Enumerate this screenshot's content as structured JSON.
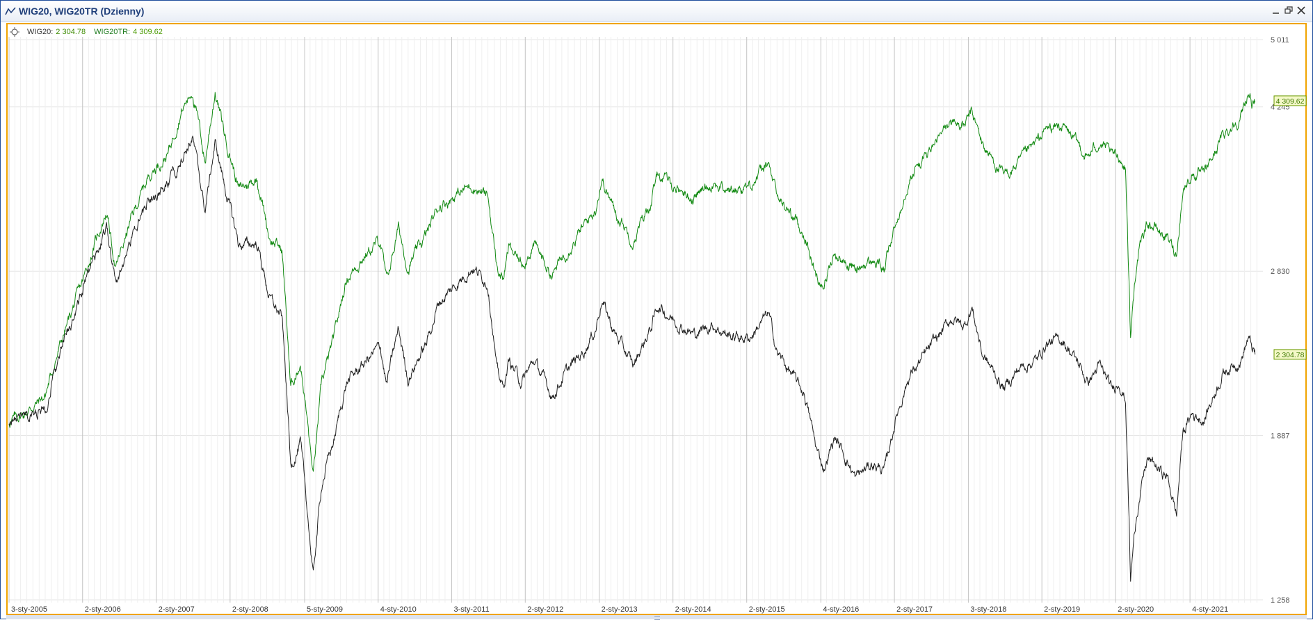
{
  "window": {
    "title": "WIG20, WIG20TR (Dzienny)",
    "icon": "chart-line-icon",
    "controls": [
      "minimize-icon",
      "restore-icon",
      "close-icon"
    ]
  },
  "legend": {
    "items": [
      {
        "name": "WIG20:",
        "value": "2 304.78",
        "color": "#222222"
      },
      {
        "name": "WIG20TR:",
        "value": "4 309.62",
        "color": "#138a13"
      }
    ]
  },
  "chart_data": {
    "type": "line",
    "title": "",
    "xlabel": "",
    "ylabel": "",
    "x_range": [
      "2005-01-03",
      "2021-12-31"
    ],
    "ylim": [
      1258,
      5011
    ],
    "y_scale": "log",
    "y_ticks": [
      {
        "label": "5 011",
        "value": 5011
      },
      {
        "label": "4 245",
        "value": 4245
      },
      {
        "label": "2 830",
        "value": 2830
      },
      {
        "label": "1 887",
        "value": 1887
      },
      {
        "label": "1 258",
        "value": 1258
      }
    ],
    "x_ticks": [
      {
        "label": "3-sty-2005",
        "date": "2005-01-03"
      },
      {
        "label": "2-sty-2006",
        "date": "2006-01-02"
      },
      {
        "label": "2-sty-2007",
        "date": "2007-01-02"
      },
      {
        "label": "2-sty-2008",
        "date": "2008-01-02"
      },
      {
        "label": "5-sty-2009",
        "date": "2009-01-05"
      },
      {
        "label": "4-sty-2010",
        "date": "2010-01-04"
      },
      {
        "label": "3-sty-2011",
        "date": "2011-01-03"
      },
      {
        "label": "2-sty-2012",
        "date": "2012-01-02"
      },
      {
        "label": "2-sty-2013",
        "date": "2013-01-02"
      },
      {
        "label": "2-sty-2014",
        "date": "2014-01-02"
      },
      {
        "label": "2-sty-2015",
        "date": "2015-01-02"
      },
      {
        "label": "4-sty-2016",
        "date": "2016-01-04"
      },
      {
        "label": "2-sty-2017",
        "date": "2017-01-02"
      },
      {
        "label": "3-sty-2018",
        "date": "2018-01-03"
      },
      {
        "label": "2-sty-2019",
        "date": "2019-01-02"
      },
      {
        "label": "2-sty-2020",
        "date": "2020-01-02"
      },
      {
        "label": "4-sty-2021",
        "date": "2021-01-04"
      }
    ],
    "grid": true,
    "series": [
      {
        "name": "WIG20TR",
        "color": "#138a13",
        "last_value": 4309.62,
        "last_label": "4 309.62",
        "points": [
          [
            "2005-01-03",
            1950
          ],
          [
            "2005-04-01",
            2000
          ],
          [
            "2005-07-01",
            2080
          ],
          [
            "2005-10-01",
            2420
          ],
          [
            "2006-01-02",
            2750
          ],
          [
            "2006-05-01",
            3280
          ],
          [
            "2006-06-15",
            2840
          ],
          [
            "2006-09-01",
            3220
          ],
          [
            "2006-12-01",
            3600
          ],
          [
            "2007-03-01",
            3780
          ],
          [
            "2007-05-01",
            4180
          ],
          [
            "2007-07-01",
            4420
          ],
          [
            "2007-09-01",
            3700
          ],
          [
            "2007-10-20",
            4400
          ],
          [
            "2007-12-15",
            3900
          ],
          [
            "2008-02-15",
            3460
          ],
          [
            "2008-05-15",
            3560
          ],
          [
            "2008-07-15",
            3080
          ],
          [
            "2008-09-15",
            2980
          ],
          [
            "2008-10-28",
            2120
          ],
          [
            "2008-12-15",
            2260
          ],
          [
            "2009-02-17",
            1700
          ],
          [
            "2009-04-01",
            2150
          ],
          [
            "2009-06-01",
            2400
          ],
          [
            "2009-08-01",
            2780
          ],
          [
            "2009-11-01",
            2950
          ],
          [
            "2010-01-15",
            3050
          ],
          [
            "2010-02-15",
            2750
          ],
          [
            "2010-04-15",
            3150
          ],
          [
            "2010-06-01",
            2850
          ],
          [
            "2010-09-01",
            3100
          ],
          [
            "2010-11-01",
            3330
          ],
          [
            "2011-01-01",
            3390
          ],
          [
            "2011-04-15",
            3500
          ],
          [
            "2011-07-01",
            3400
          ],
          [
            "2011-08-15",
            2850
          ],
          [
            "2011-09-15",
            2780
          ],
          [
            "2011-10-15",
            3000
          ],
          [
            "2011-12-15",
            2880
          ],
          [
            "2012-02-15",
            3020
          ],
          [
            "2012-05-15",
            2800
          ],
          [
            "2012-08-01",
            3000
          ],
          [
            "2012-10-15",
            3150
          ],
          [
            "2012-12-15",
            3300
          ],
          [
            "2013-01-15",
            3560
          ],
          [
            "2013-03-15",
            3300
          ],
          [
            "2013-06-20",
            3050
          ],
          [
            "2013-09-15",
            3350
          ],
          [
            "2013-10-20",
            3600
          ],
          [
            "2014-01-15",
            3480
          ],
          [
            "2014-04-15",
            3400
          ],
          [
            "2014-07-15",
            3520
          ],
          [
            "2014-10-15",
            3450
          ],
          [
            "2015-01-15",
            3500
          ],
          [
            "2015-04-20",
            3680
          ],
          [
            "2015-06-01",
            3400
          ],
          [
            "2015-08-15",
            3250
          ],
          [
            "2015-10-15",
            3100
          ],
          [
            "2015-12-15",
            2780
          ],
          [
            "2016-01-20",
            2750
          ],
          [
            "2016-03-15",
            2950
          ],
          [
            "2016-06-24",
            2840
          ],
          [
            "2016-09-15",
            2900
          ],
          [
            "2016-11-15",
            2850
          ],
          [
            "2017-01-15",
            3200
          ],
          [
            "2017-03-15",
            3560
          ],
          [
            "2017-06-15",
            3780
          ],
          [
            "2017-10-15",
            4100
          ],
          [
            "2017-12-15",
            4050
          ],
          [
            "2018-01-20",
            4180
          ],
          [
            "2018-03-15",
            3870
          ],
          [
            "2018-06-28",
            3570
          ],
          [
            "2018-09-15",
            3700
          ],
          [
            "2018-12-15",
            3900
          ],
          [
            "2019-01-25",
            4020
          ],
          [
            "2019-04-15",
            4050
          ],
          [
            "2019-07-15",
            3830
          ],
          [
            "2019-08-15",
            3740
          ],
          [
            "2019-10-15",
            3900
          ],
          [
            "2019-12-15",
            3750
          ],
          [
            "2020-01-20",
            3760
          ],
          [
            "2020-02-20",
            3650
          ],
          [
            "2020-03-16",
            2400
          ],
          [
            "2020-04-15",
            2900
          ],
          [
            "2020-06-08",
            3200
          ],
          [
            "2020-09-15",
            3070
          ],
          [
            "2020-10-30",
            2950
          ],
          [
            "2020-11-30",
            3450
          ],
          [
            "2021-01-15",
            3600
          ],
          [
            "2021-03-15",
            3580
          ],
          [
            "2021-06-15",
            3950
          ],
          [
            "2021-09-15",
            4150
          ],
          [
            "2021-10-20",
            4400
          ],
          [
            "2021-11-15",
            4250
          ],
          [
            "2021-11-22",
            4309.62
          ]
        ]
      },
      {
        "name": "WIG20",
        "color": "#222222",
        "last_value": 2304.78,
        "last_label": "2 304.78",
        "points": [
          [
            "2005-01-03",
            1950
          ],
          [
            "2005-04-01",
            1960
          ],
          [
            "2005-07-01",
            2020
          ],
          [
            "2005-10-01",
            2370
          ],
          [
            "2006-01-02",
            2680
          ],
          [
            "2006-05-01",
            3150
          ],
          [
            "2006-06-15",
            2730
          ],
          [
            "2006-09-01",
            3070
          ],
          [
            "2006-12-01",
            3390
          ],
          [
            "2007-03-01",
            3480
          ],
          [
            "2007-05-01",
            3740
          ],
          [
            "2007-07-01",
            3930
          ],
          [
            "2007-09-01",
            3280
          ],
          [
            "2007-10-20",
            3880
          ],
          [
            "2007-12-15",
            3430
          ],
          [
            "2008-02-15",
            3020
          ],
          [
            "2008-05-15",
            3030
          ],
          [
            "2008-07-15",
            2650
          ],
          [
            "2008-09-15",
            2520
          ],
          [
            "2008-10-28",
            1750
          ],
          [
            "2008-12-15",
            1850
          ],
          [
            "2009-02-17",
            1330
          ],
          [
            "2009-04-01",
            1680
          ],
          [
            "2009-06-01",
            1870
          ],
          [
            "2009-08-01",
            2150
          ],
          [
            "2009-11-01",
            2260
          ],
          [
            "2010-01-15",
            2350
          ],
          [
            "2010-02-15",
            2140
          ],
          [
            "2010-04-15",
            2450
          ],
          [
            "2010-06-01",
            2170
          ],
          [
            "2010-09-01",
            2370
          ],
          [
            "2010-11-01",
            2620
          ],
          [
            "2011-01-01",
            2700
          ],
          [
            "2011-04-15",
            2860
          ],
          [
            "2011-07-01",
            2750
          ],
          [
            "2011-08-15",
            2210
          ],
          [
            "2011-09-15",
            2120
          ],
          [
            "2011-10-15",
            2270
          ],
          [
            "2011-12-15",
            2150
          ],
          [
            "2012-02-15",
            2270
          ],
          [
            "2012-05-15",
            2080
          ],
          [
            "2012-08-01",
            2220
          ],
          [
            "2012-10-15",
            2320
          ],
          [
            "2012-12-15",
            2450
          ],
          [
            "2013-01-15",
            2640
          ],
          [
            "2013-03-15",
            2440
          ],
          [
            "2013-06-20",
            2240
          ],
          [
            "2013-09-15",
            2460
          ],
          [
            "2013-10-20",
            2600
          ],
          [
            "2014-01-15",
            2500
          ],
          [
            "2014-04-15",
            2420
          ],
          [
            "2014-07-15",
            2480
          ],
          [
            "2014-10-15",
            2410
          ],
          [
            "2015-01-15",
            2400
          ],
          [
            "2015-04-20",
            2550
          ],
          [
            "2015-06-01",
            2320
          ],
          [
            "2015-08-15",
            2190
          ],
          [
            "2015-10-15",
            2090
          ],
          [
            "2015-12-15",
            1820
          ],
          [
            "2016-01-20",
            1740
          ],
          [
            "2016-03-15",
            1880
          ],
          [
            "2016-06-24",
            1700
          ],
          [
            "2016-09-15",
            1760
          ],
          [
            "2016-11-15",
            1730
          ],
          [
            "2017-01-15",
            1990
          ],
          [
            "2017-03-15",
            2180
          ],
          [
            "2017-06-15",
            2320
          ],
          [
            "2017-10-15",
            2520
          ],
          [
            "2017-12-15",
            2470
          ],
          [
            "2018-01-20",
            2590
          ],
          [
            "2018-03-15",
            2300
          ],
          [
            "2018-06-28",
            2120
          ],
          [
            "2018-09-15",
            2230
          ],
          [
            "2018-12-15",
            2280
          ],
          [
            "2019-01-25",
            2370
          ],
          [
            "2019-04-15",
            2390
          ],
          [
            "2019-07-15",
            2230
          ],
          [
            "2019-08-15",
            2150
          ],
          [
            "2019-10-15",
            2240
          ],
          [
            "2019-12-15",
            2110
          ],
          [
            "2020-01-20",
            2160
          ],
          [
            "2020-02-20",
            2060
          ],
          [
            "2020-03-16",
            1320
          ],
          [
            "2020-04-15",
            1560
          ],
          [
            "2020-06-08",
            1780
          ],
          [
            "2020-09-15",
            1700
          ],
          [
            "2020-10-30",
            1550
          ],
          [
            "2020-11-30",
            1900
          ],
          [
            "2021-01-15",
            1990
          ],
          [
            "2021-03-15",
            1960
          ],
          [
            "2021-06-15",
            2200
          ],
          [
            "2021-09-15",
            2280
          ],
          [
            "2021-10-20",
            2400
          ],
          [
            "2021-11-15",
            2320
          ],
          [
            "2021-11-22",
            2304.78
          ]
        ]
      }
    ]
  }
}
